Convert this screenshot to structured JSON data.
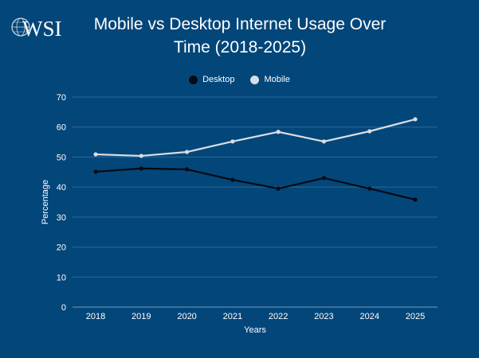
{
  "logo_text": "WSI",
  "colors": {
    "background": "#03467a",
    "desktop": "#050a14",
    "mobile": "#d9dde3",
    "grid": "#2d6a98"
  },
  "chart_data": {
    "type": "line",
    "title": "Mobile vs Desktop Internet Usage Over Time (2018-2025)",
    "title_lines": [
      "Mobile vs Desktop Internet Usage Over",
      "Time (2018-2025)"
    ],
    "xlabel": "Years",
    "ylabel": "Percentage",
    "ylim": [
      0,
      70
    ],
    "yticks": [
      0,
      10,
      20,
      30,
      40,
      50,
      60,
      70
    ],
    "grid": true,
    "legend_position": "top-center",
    "categories": [
      "2018",
      "2019",
      "2020",
      "2021",
      "2022",
      "2023",
      "2024",
      "2025"
    ],
    "series": [
      {
        "name": "Desktop",
        "values": [
          45.1,
          46.2,
          45.9,
          42.4,
          39.5,
          43.0,
          39.5,
          35.8
        ]
      },
      {
        "name": "Mobile",
        "values": [
          50.9,
          50.4,
          51.7,
          55.2,
          58.4,
          55.2,
          58.6,
          62.6
        ]
      }
    ]
  }
}
